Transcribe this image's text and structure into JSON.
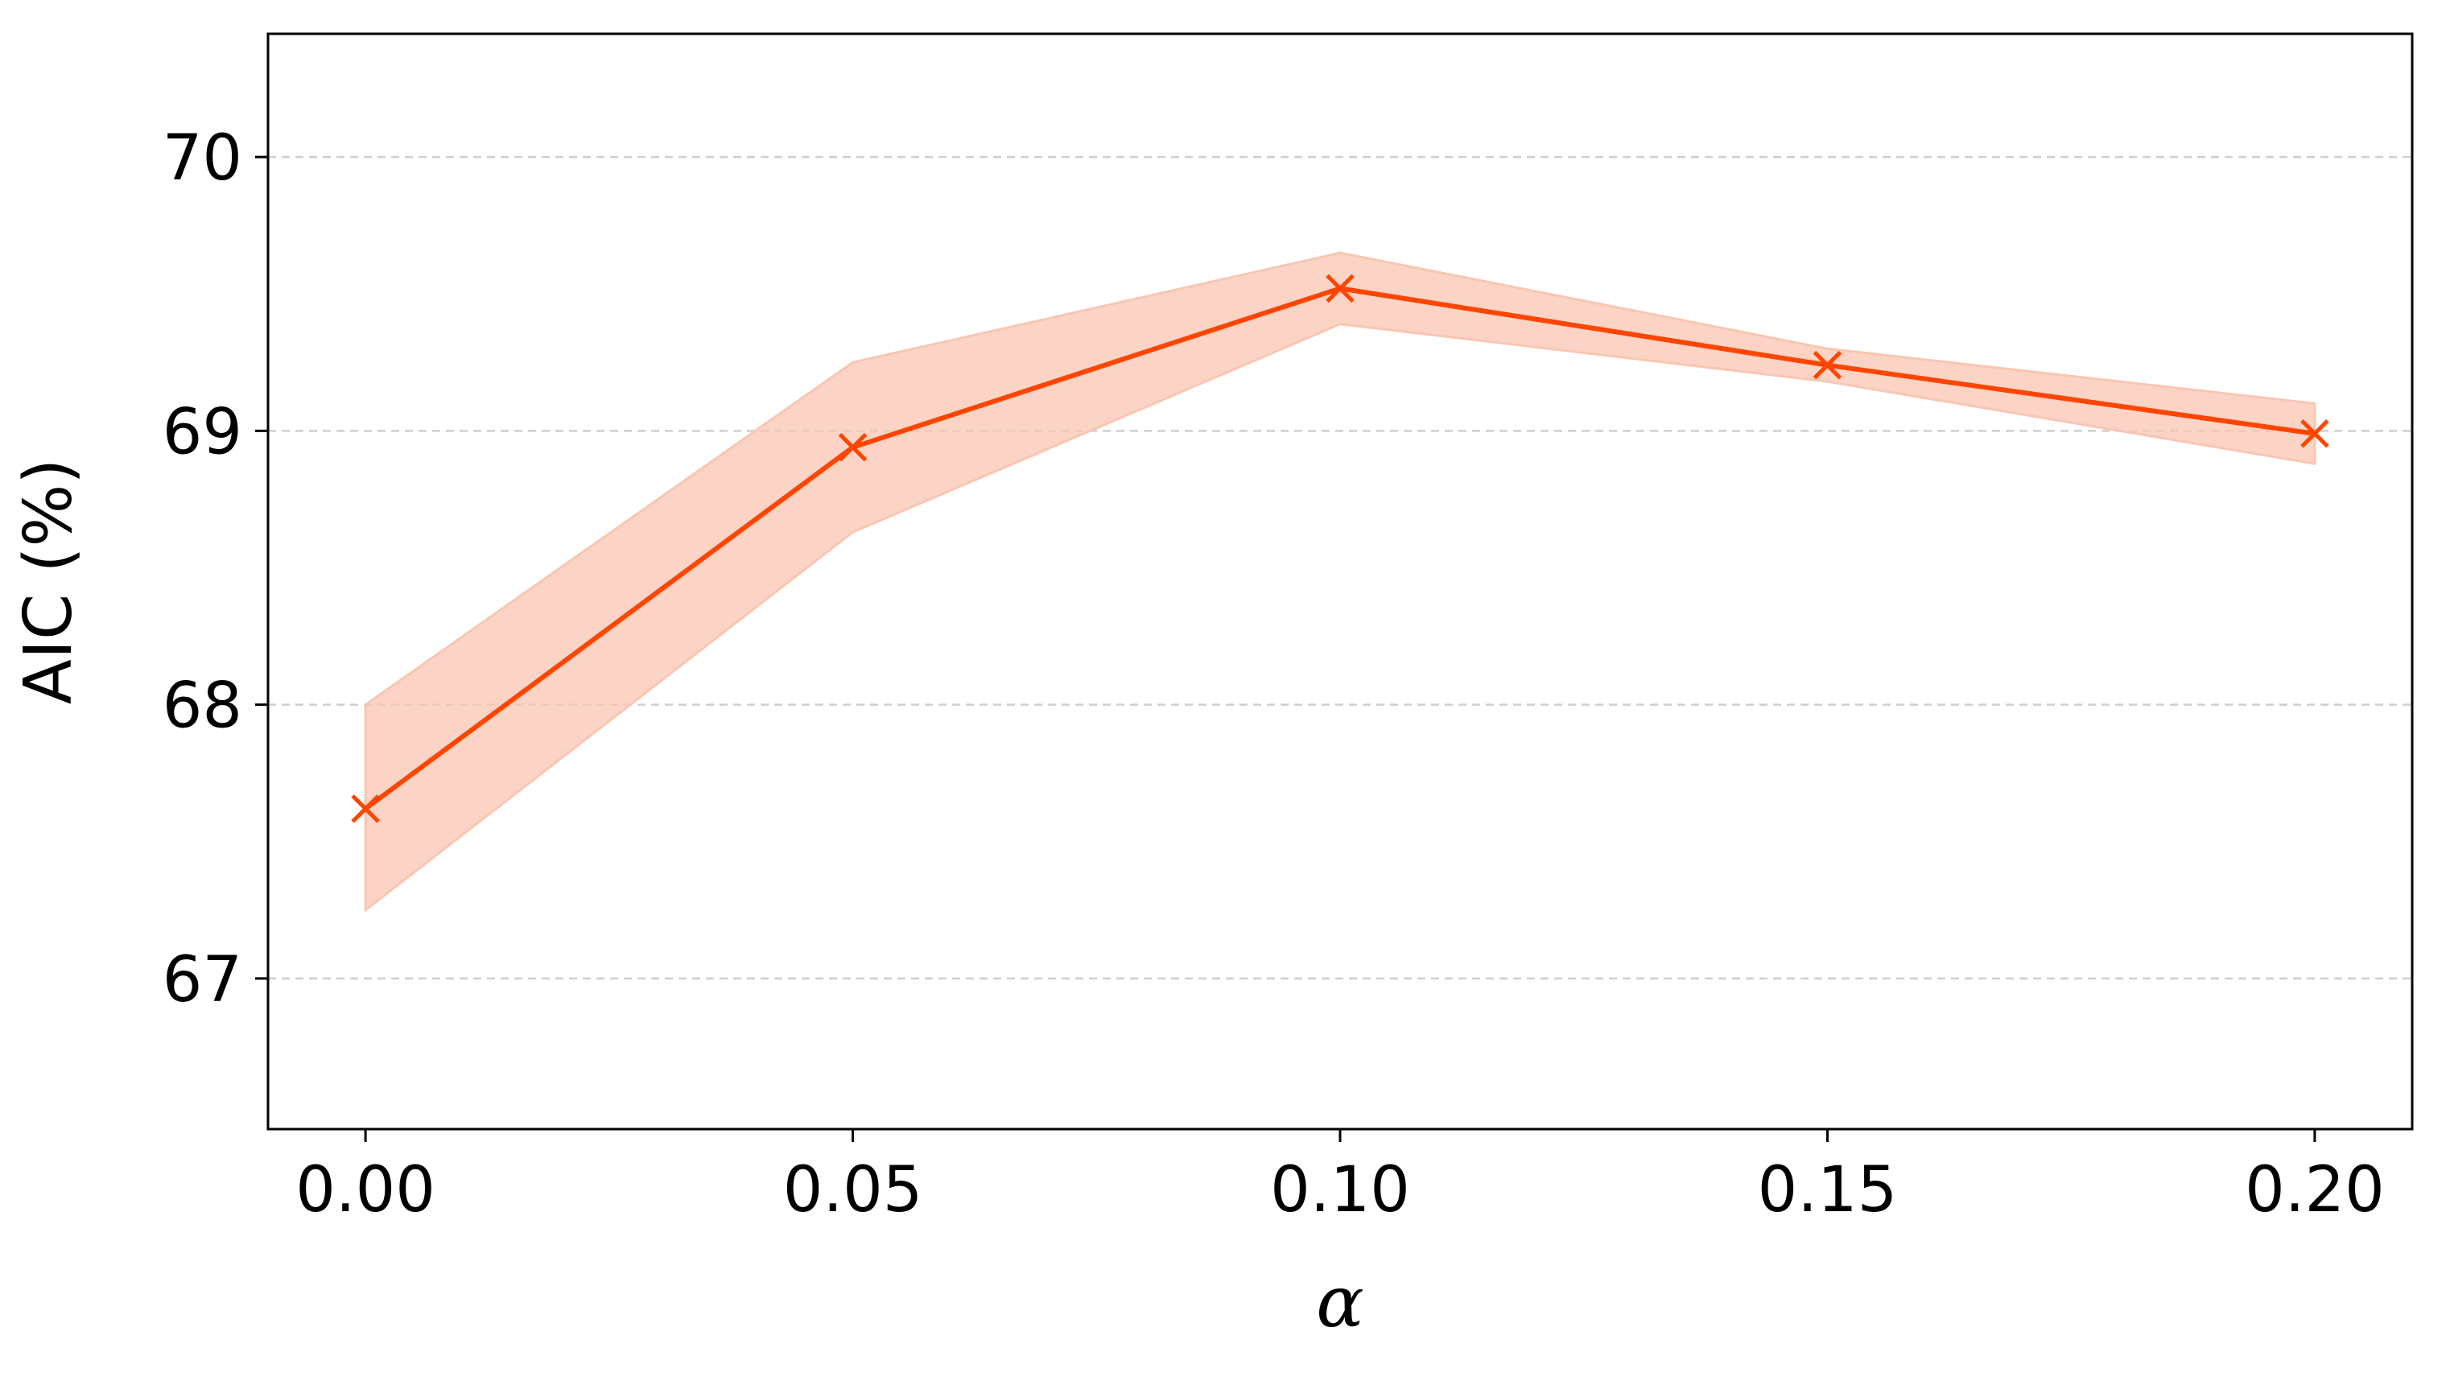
{
  "chart_data": {
    "type": "line",
    "title": "",
    "xlabel": "α",
    "ylabel": "AIC (%)",
    "x": [
      0.0,
      0.05,
      0.1,
      0.15,
      0.2
    ],
    "x_tick_labels": [
      "0.00",
      "0.05",
      "0.10",
      "0.15",
      "0.20"
    ],
    "y_tick_values": [
      67,
      68,
      69,
      70
    ],
    "y_tick_labels": [
      "67",
      "68",
      "69",
      "70"
    ],
    "xlim": [
      -0.01,
      0.21
    ],
    "ylim": [
      66.45,
      70.45
    ],
    "grid": "y-dashed",
    "series": [
      {
        "values": [
          67.62,
          68.94,
          69.52,
          69.24,
          68.99
        ],
        "lower": [
          67.25,
          68.63,
          69.39,
          69.18,
          68.88
        ],
        "upper": [
          68.0,
          69.25,
          69.65,
          69.3,
          69.1
        ],
        "marker": "x",
        "color": "#ff4500",
        "band_color": "#f9c6b2"
      }
    ]
  }
}
